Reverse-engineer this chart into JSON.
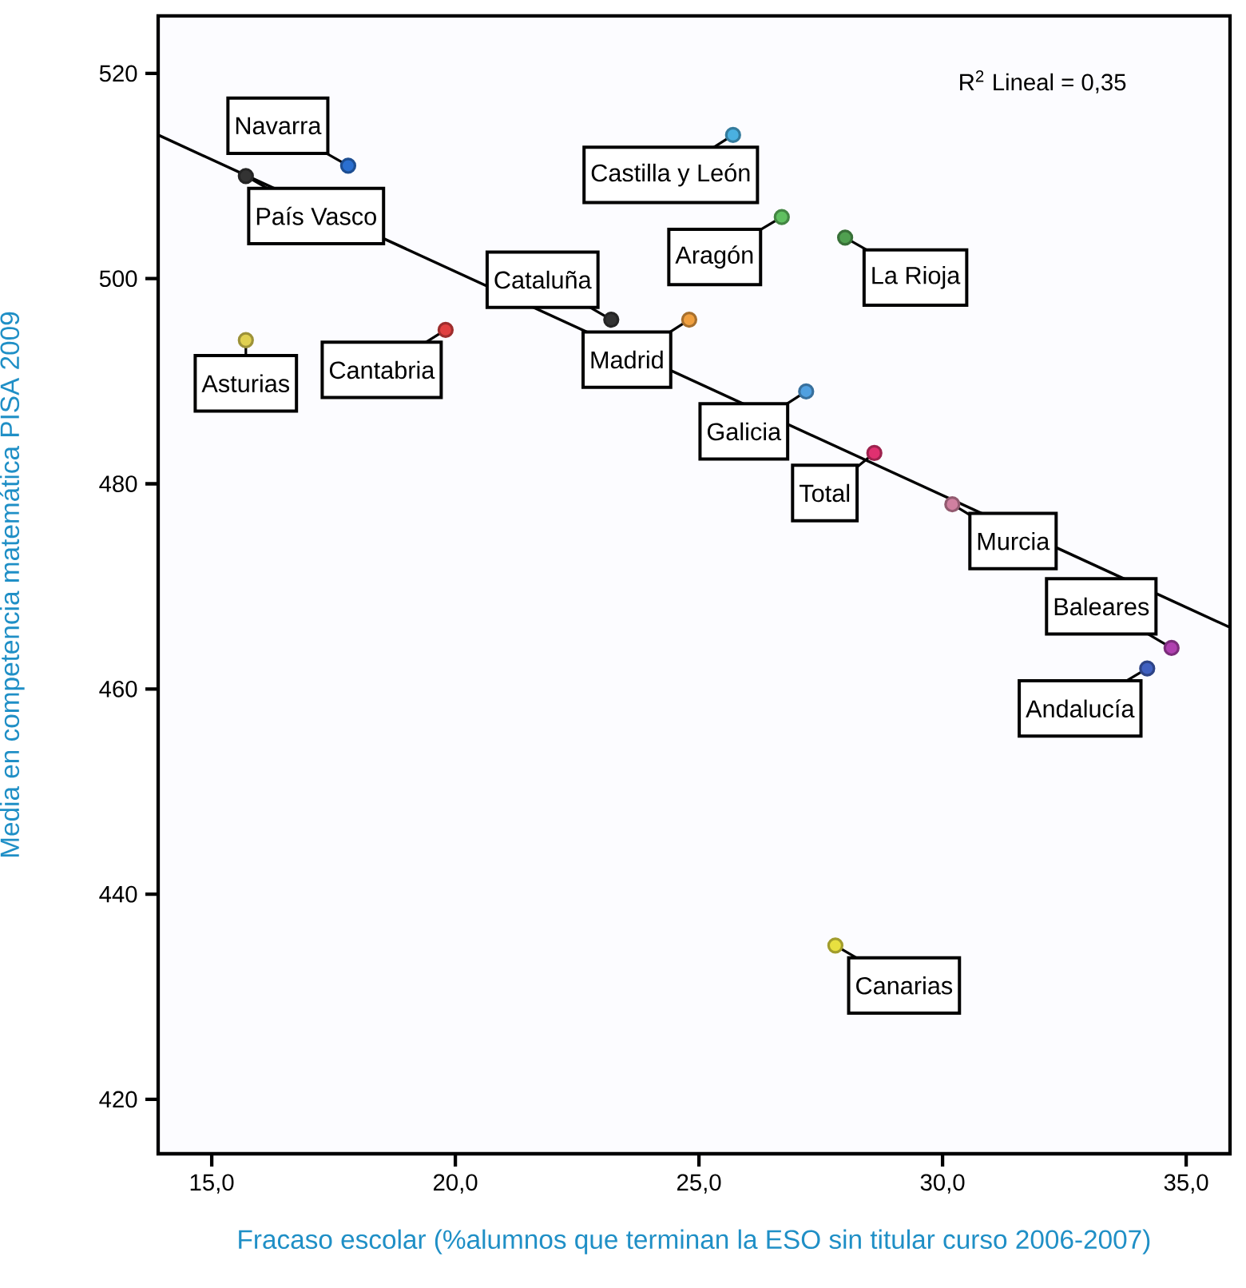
{
  "chart_data": {
    "type": "scatter",
    "xlabel": "Fracaso escolar (%alumnos que terminan la ESO sin titular curso 2006-2007)",
    "ylabel": "Media en competencia matemática PISA 2009",
    "x": [
      17.8,
      15.7,
      15.7,
      19.8,
      23.2,
      24.8,
      25.7,
      26.7,
      28.0,
      27.2,
      28.6,
      30.2,
      34.7,
      34.2,
      27.8
    ],
    "series": [
      {
        "marker": "circle",
        "values": [
          511,
          510,
          494,
          495,
          496,
          496,
          514,
          506,
          504,
          489,
          483,
          478,
          464,
          462,
          435
        ],
        "colors": [
          "#2a6fd0",
          "#333333",
          "#e0d050",
          "#e04040",
          "#333333",
          "#f0a040",
          "#4ab0e0",
          "#60c060",
          "#50a050",
          "#50a0e0",
          "#e03070",
          "#d080a0",
          "#b040b0",
          "#4060c0",
          "#e8e040"
        ]
      },
      {
        "type": "line",
        "x": [
          13.9,
          35.9
        ],
        "values": [
          514,
          466
        ],
        "color": "#000000"
      }
    ],
    "xlim": [
      13.9,
      35.9
    ],
    "ylim": [
      414.7,
      525.6
    ],
    "xticks": [
      {
        "value": 15,
        "label": "15,0"
      },
      {
        "value": 20,
        "label": "20,0"
      },
      {
        "value": 25,
        "label": "25,0"
      },
      {
        "value": 30,
        "label": "30,0"
      },
      {
        "value": 35,
        "label": "35,0"
      }
    ],
    "yticks": [
      420,
      440,
      460,
      480,
      500,
      520
    ],
    "annotations": [
      {
        "text": "Navarra",
        "x": 17.8,
        "y": 511
      },
      {
        "text": "País Vasco",
        "x": 15.7,
        "y": 510
      },
      {
        "text": "Asturias",
        "x": 15.7,
        "y": 494
      },
      {
        "text": "Cantabria",
        "x": 19.8,
        "y": 495
      },
      {
        "text": "Cataluña",
        "x": 23.2,
        "y": 496
      },
      {
        "text": "Madrid",
        "x": 24.8,
        "y": 496
      },
      {
        "text": "Castilla y León",
        "x": 25.7,
        "y": 514
      },
      {
        "text": "Aragón",
        "x": 26.7,
        "y": 506
      },
      {
        "text": "La Rioja",
        "x": 28.0,
        "y": 504
      },
      {
        "text": "Galicia",
        "x": 27.2,
        "y": 489
      },
      {
        "text": "Total",
        "x": 28.6,
        "y": 483
      },
      {
        "text": "Murcia",
        "x": 30.2,
        "y": 478
      },
      {
        "text": "Baleares",
        "x": 34.7,
        "y": 464
      },
      {
        "text": "Andalucía",
        "x": 34.2,
        "y": 462
      },
      {
        "text": "Canarias",
        "x": 27.8,
        "y": 435
      },
      "R$^{2}$ Lineal = 0,35"
    ]
  }
}
